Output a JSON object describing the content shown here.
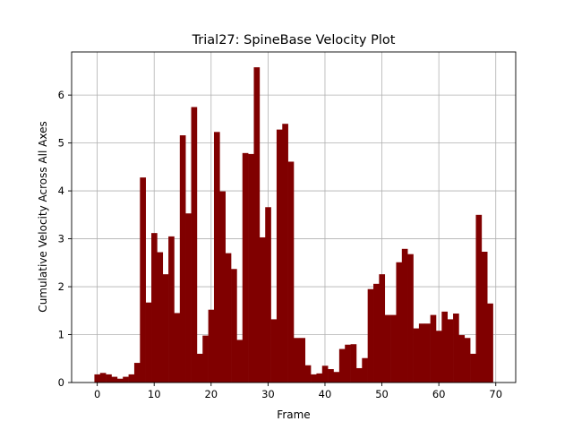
{
  "chart_data": {
    "type": "bar",
    "title": "Trial27: SpineBase Velocity Plot",
    "xlabel": "Frame",
    "ylabel": "Cumulative Velocity Across All Axes",
    "xlim": [
      -4.5,
      73.5
    ],
    "ylim": [
      0,
      6.9
    ],
    "xticks": [
      0,
      10,
      20,
      30,
      40,
      50,
      60,
      70
    ],
    "yticks": [
      0,
      1,
      2,
      3,
      4,
      5,
      6
    ],
    "grid": true,
    "bar_color": "#800000",
    "x": [
      0,
      1,
      2,
      3,
      4,
      5,
      6,
      7,
      8,
      9,
      10,
      11,
      12,
      13,
      14,
      15,
      16,
      17,
      18,
      19,
      20,
      21,
      22,
      23,
      24,
      25,
      26,
      27,
      28,
      29,
      30,
      31,
      32,
      33,
      34,
      35,
      36,
      37,
      38,
      39,
      40,
      41,
      42,
      43,
      44,
      45,
      46,
      47,
      48,
      49,
      50,
      51,
      52,
      53,
      54,
      55,
      56,
      57,
      58,
      59,
      60,
      61,
      62,
      63,
      64,
      65,
      66,
      67,
      68,
      69
    ],
    "values": [
      0.17,
      0.2,
      0.17,
      0.12,
      0.08,
      0.12,
      0.17,
      0.41,
      4.28,
      1.67,
      3.12,
      2.72,
      2.26,
      3.05,
      1.45,
      5.16,
      3.53,
      5.75,
      0.6,
      0.98,
      1.52,
      5.23,
      3.99,
      2.7,
      2.37,
      0.89,
      4.79,
      4.77,
      6.58,
      3.03,
      3.66,
      1.32,
      5.28,
      5.4,
      4.61,
      0.93,
      0.93,
      0.36,
      0.17,
      0.19,
      0.35,
      0.28,
      0.22,
      0.7,
      0.79,
      0.8,
      0.3,
      0.51,
      1.95,
      2.06,
      2.26,
      1.41,
      1.41,
      2.51,
      2.79,
      2.68,
      1.13,
      1.23,
      1.23,
      1.41,
      1.08,
      1.48,
      1.32,
      1.44,
      0.99,
      0.93,
      0.6,
      3.5,
      2.73,
      1.65
    ]
  }
}
